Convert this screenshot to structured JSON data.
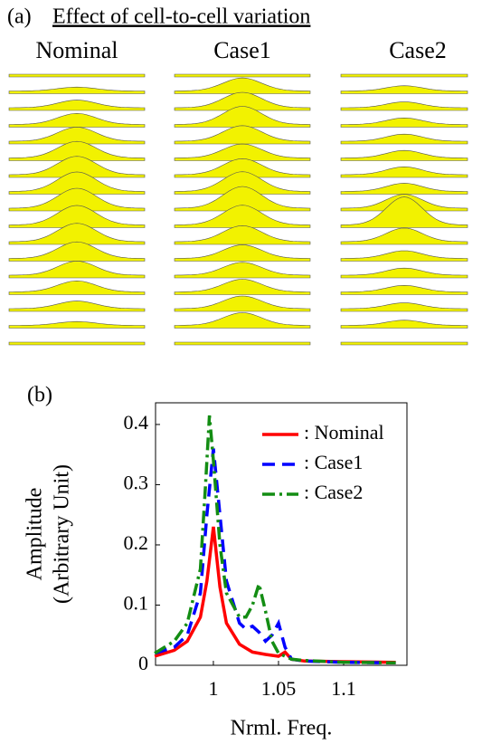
{
  "panel_a": {
    "label": "(a)",
    "title": "Effect of cell-to-cell variation",
    "columns": [
      "Nominal",
      "Case1",
      "Case2"
    ]
  },
  "chart_data": {
    "type": "line",
    "panel_label": "(b)",
    "xlabel": "Nrml. Freq.",
    "ylabel": [
      "Amplitude",
      "(Arbitrary Unit)"
    ],
    "xlim": [
      0.9556,
      1.1486
    ],
    "ylim": [
      0,
      0.436
    ],
    "xticks": [
      1,
      1.05,
      1.1
    ],
    "yticks": [
      0,
      0.1,
      0.2,
      0.3,
      0.4
    ],
    "legend": "upper right",
    "series": [
      {
        "name": ": Nominal",
        "color": "#ff0000",
        "dash": "solid",
        "x": [
          0.955,
          0.97,
          0.98,
          0.99,
          0.995,
          1.0,
          1.005,
          1.01,
          1.02,
          1.03,
          1.04,
          1.05,
          1.055,
          1.06,
          1.07,
          1.1,
          1.14
        ],
        "values": [
          0.015,
          0.025,
          0.04,
          0.08,
          0.14,
          0.23,
          0.13,
          0.07,
          0.035,
          0.022,
          0.018,
          0.015,
          0.022,
          0.01,
          0.007,
          0.006,
          0.005
        ]
      },
      {
        "name": ": Case1",
        "color": "#0000ff",
        "dash": "dashed",
        "x": [
          0.955,
          0.97,
          0.98,
          0.99,
          0.995,
          1.0,
          1.005,
          1.01,
          1.02,
          1.025,
          1.03,
          1.035,
          1.04,
          1.045,
          1.05,
          1.055,
          1.06,
          1.07,
          1.1,
          1.14
        ],
        "values": [
          0.02,
          0.03,
          0.05,
          0.12,
          0.25,
          0.36,
          0.25,
          0.14,
          0.07,
          0.06,
          0.065,
          0.055,
          0.04,
          0.05,
          0.07,
          0.03,
          0.01,
          0.007,
          0.005,
          0.004
        ]
      },
      {
        "name": ": Case2",
        "color": "#138d13",
        "dash": "dashdot",
        "x": [
          0.955,
          0.97,
          0.98,
          0.99,
          0.994,
          0.997,
          1.0,
          1.005,
          1.01,
          1.02,
          1.025,
          1.03,
          1.035,
          1.04,
          1.045,
          1.05,
          1.06,
          1.07,
          1.1,
          1.14
        ],
        "values": [
          0.02,
          0.04,
          0.07,
          0.16,
          0.3,
          0.415,
          0.34,
          0.2,
          0.12,
          0.08,
          0.08,
          0.1,
          0.135,
          0.09,
          0.04,
          0.02,
          0.01,
          0.008,
          0.005,
          0.004
        ]
      }
    ]
  }
}
